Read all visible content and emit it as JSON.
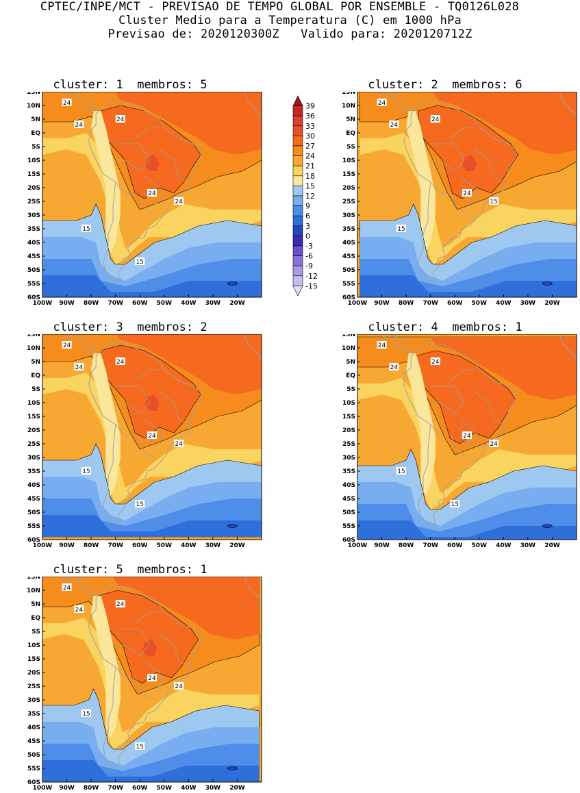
{
  "header": {
    "line1": "CPTEC/INPE/MCT - PREVISAO DE TEMPO GLOBAL POR ENSEMBLE - TQ0126L028",
    "line2": "Cluster Medio para a Temperatura (C) em 1000 hPa",
    "line3": "Previsao de: 2020120300Z   Valido para: 2020120712Z"
  },
  "map_axes": {
    "lon_labels": [
      "100W",
      "90W",
      "80W",
      "70W",
      "60W",
      "50W",
      "40W",
      "30W",
      "20W"
    ],
    "lat_labels": [
      "15N",
      "10N",
      "5N",
      "EQ",
      "5S",
      "10S",
      "15S",
      "20S",
      "25S",
      "30S",
      "35S",
      "40S",
      "45S",
      "50S",
      "55S",
      "60S"
    ],
    "lon_range": [
      -100,
      -10
    ],
    "lat_range": [
      -60,
      15
    ]
  },
  "panels": [
    {
      "title": "cluster: 1  membros: 5",
      "contour_labels": [
        "24",
        "24",
        "24",
        "24",
        "24",
        "15",
        "15"
      ]
    },
    {
      "title": "cluster: 2  membros: 6",
      "contour_labels": [
        "24",
        "24",
        "24",
        "24",
        "15",
        "15"
      ]
    },
    {
      "title": "cluster: 3  membros: 2",
      "contour_labels": [
        "24",
        "24",
        "24",
        "24",
        "24",
        "15",
        "15"
      ]
    },
    {
      "title": "cluster: 4  membros: 1",
      "contour_labels": [
        "24",
        "24",
        "24",
        "24",
        "24",
        "15",
        "15"
      ]
    },
    {
      "title": "cluster: 5  membros: 1",
      "contour_labels": [
        "24",
        "24",
        "24",
        "24",
        "24",
        "15",
        "15"
      ]
    }
  ],
  "colorbar": {
    "labels": [
      "39",
      "36",
      "33",
      "30",
      "27",
      "24",
      "21",
      "18",
      "15",
      "12",
      "9",
      "6",
      "3",
      "0",
      "-3",
      "-6",
      "-9",
      "-12",
      "-15"
    ],
    "colors": [
      "#a3141c",
      "#c0282a",
      "#d8402a",
      "#e8502a",
      "#f56a1e",
      "#f58c1c",
      "#f7a832",
      "#fad460",
      "#fbe79c",
      "#9ec8f0",
      "#78aef0",
      "#4f8ee8",
      "#2f6fdc",
      "#2048b8",
      "#3a2cb0",
      "#6a4ed0",
      "#8a72dc",
      "#ab98e6",
      "#c8bcf0",
      "#e4dcf8"
    ]
  },
  "colors": {
    "land_border": "#a0a0a0",
    "contour_line": "#000000"
  }
}
